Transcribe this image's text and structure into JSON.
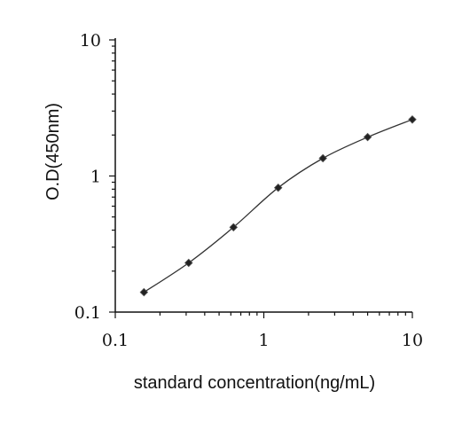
{
  "chart_data": {
    "type": "scatter",
    "title": "",
    "xlabel": "standard concentration(ng/mL)",
    "ylabel": "O.D(450nm)",
    "xscale": "log",
    "yscale": "log",
    "xlim": [
      0.1,
      10
    ],
    "ylim": [
      0.1,
      10
    ],
    "xticks": [
      "0.1",
      "1",
      "10"
    ],
    "yticks": [
      "0.1",
      "1",
      "10"
    ],
    "grid": false,
    "legend": "none",
    "fitted_curve": true,
    "marker_shape": "diamond",
    "series": [
      {
        "x": [
          0.156,
          0.312,
          0.625,
          1.25,
          2.5,
          5,
          10
        ],
        "y": [
          0.14,
          0.23,
          0.42,
          0.82,
          1.35,
          1.93,
          2.6
        ]
      }
    ]
  }
}
